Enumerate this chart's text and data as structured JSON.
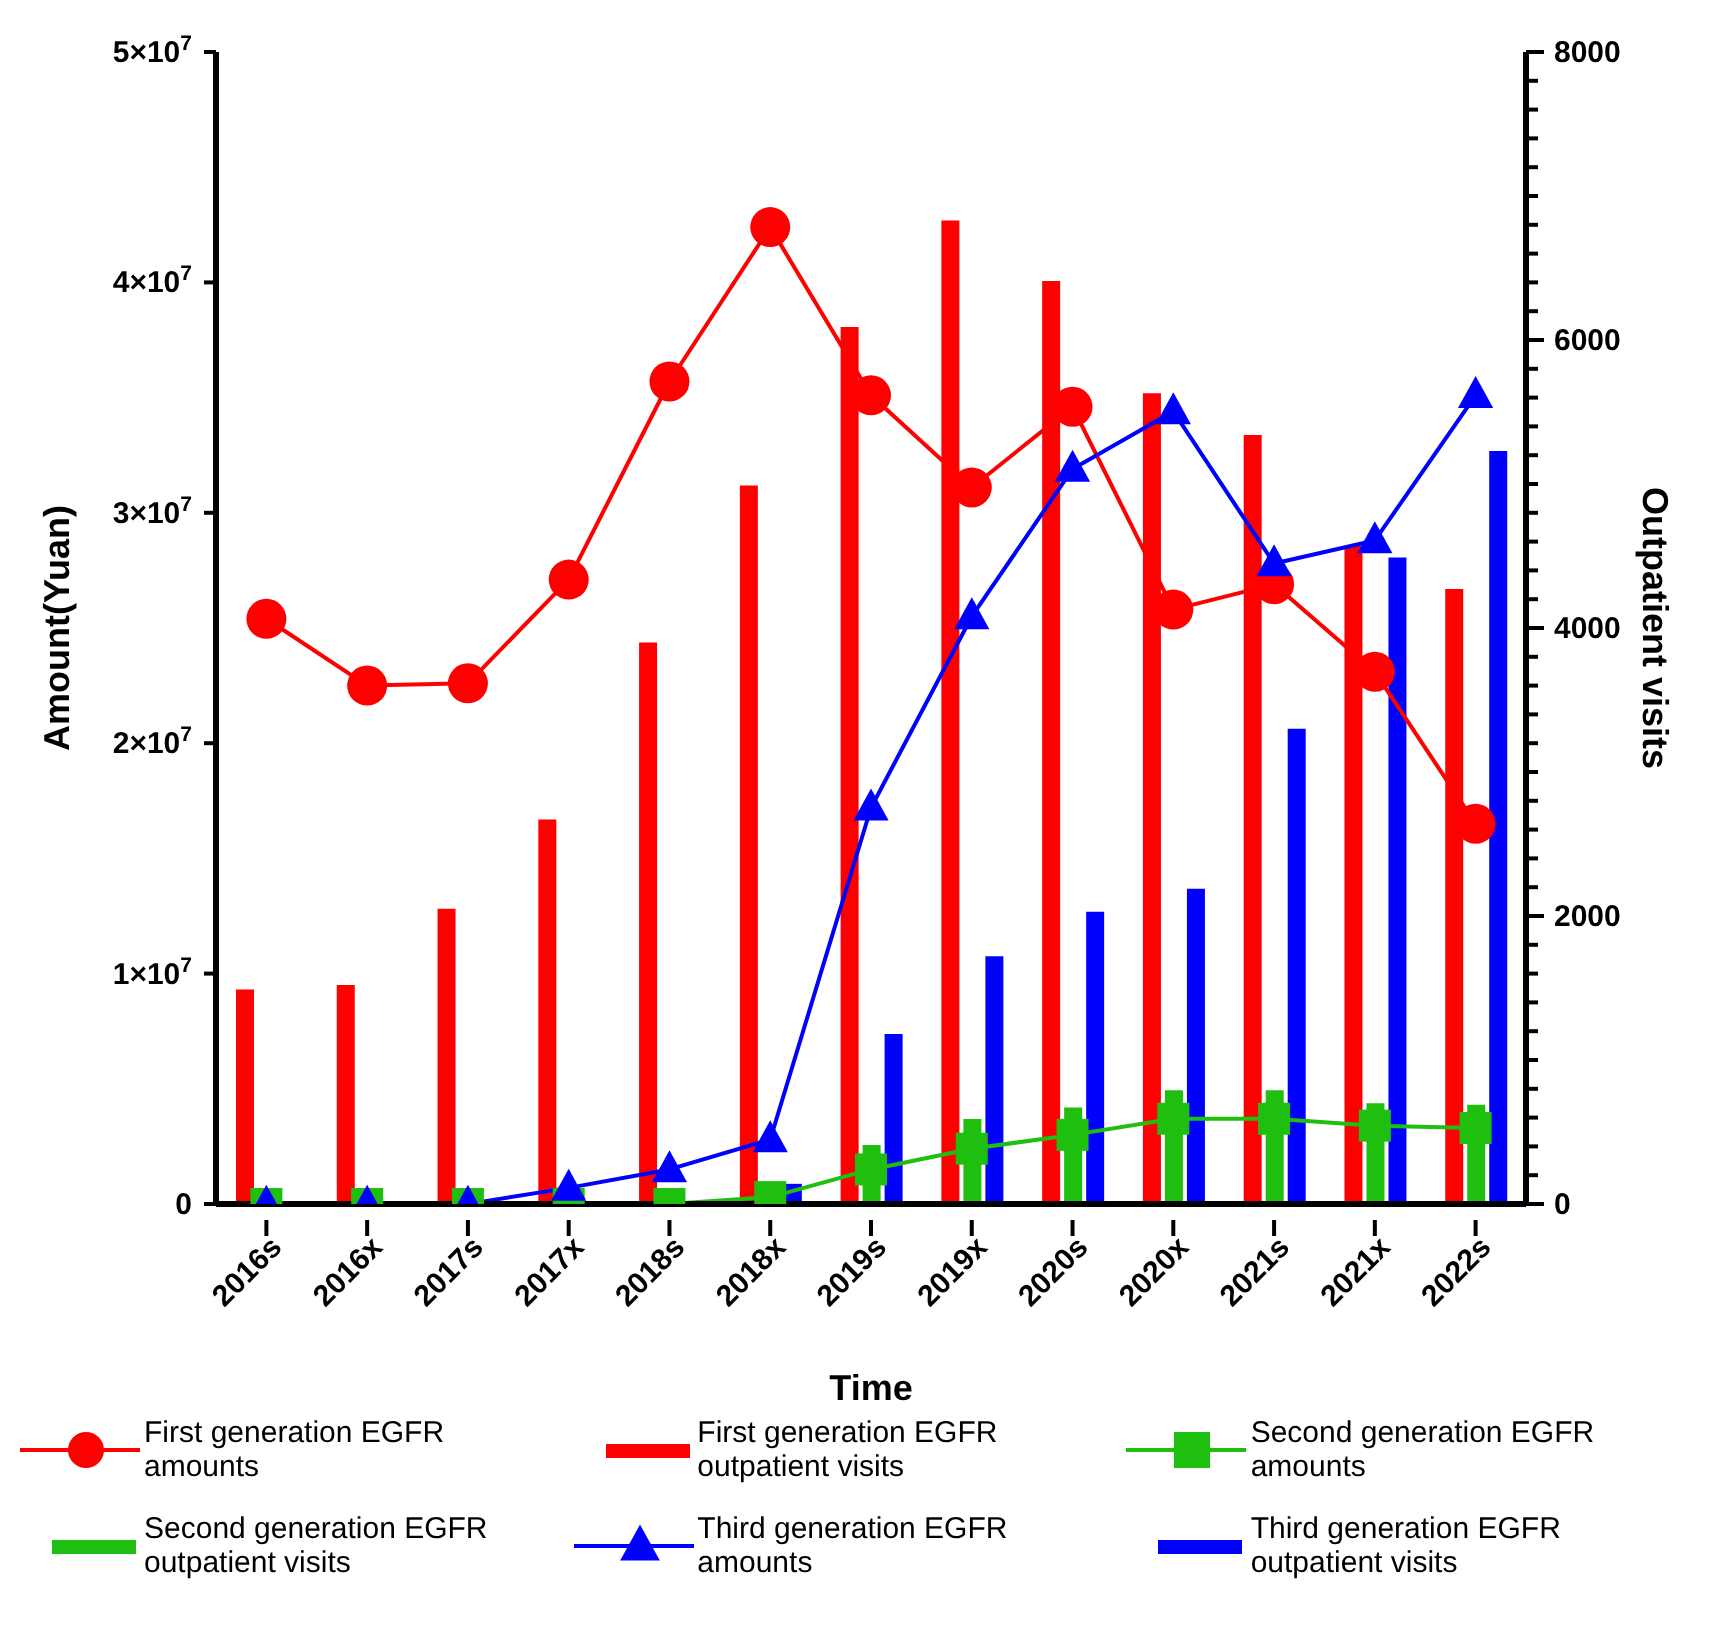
{
  "chart_data": {
    "type": "line",
    "xlabel": "Time",
    "ylabel": "Amount(Yuan)",
    "y2label": "Outpatient visits",
    "categories": [
      "2016s",
      "2016x",
      "2017s",
      "2017x",
      "2018s",
      "2018x",
      "2019s",
      "2019x",
      "2020s",
      "2020x",
      "2021s",
      "2021x",
      "2022s"
    ],
    "ylim": [
      0,
      50000000
    ],
    "yticks": [
      0,
      {
        "value": 10000000,
        "label": "1×10$^{7}$"
      },
      {
        "value": 20000000,
        "label": "2×10$^{7}$"
      },
      {
        "value": 30000000,
        "label": "3×10$^{7}$"
      },
      {
        "value": 40000000,
        "label": "4×10$^{7}$"
      },
      {
        "value": 50000000,
        "label": "5×10$^{7}$"
      }
    ],
    "y2lim": [
      0,
      8000
    ],
    "y2ticks": [
      0,
      {
        "value": 200,
        "label": null
      },
      {
        "value": 400,
        "label": null
      },
      {
        "value": 600,
        "label": null
      },
      {
        "value": 800,
        "label": null
      },
      {
        "value": 1000,
        "label": null
      },
      {
        "value": 1200,
        "label": null
      },
      {
        "value": 1400,
        "label": null
      },
      {
        "value": 1600,
        "label": null
      },
      {
        "value": 1800,
        "label": null
      },
      2000,
      {
        "value": 2200,
        "label": null
      },
      {
        "value": 2400,
        "label": null
      },
      {
        "value": 2600,
        "label": null
      },
      {
        "value": 2800,
        "label": null
      },
      {
        "value": 3000,
        "label": null
      },
      {
        "value": 3200,
        "label": null
      },
      {
        "value": 3400,
        "label": null
      },
      {
        "value": 3600,
        "label": null
      },
      {
        "value": 3800,
        "label": null
      },
      4000,
      {
        "value": 4200,
        "label": null
      },
      {
        "value": 4400,
        "label": null
      },
      {
        "value": 4600,
        "label": null
      },
      {
        "value": 4800,
        "label": null
      },
      {
        "value": 5000,
        "label": null
      },
      {
        "value": 5200,
        "label": null
      },
      {
        "value": 5400,
        "label": null
      },
      {
        "value": 5600,
        "label": null
      },
      {
        "value": 5800,
        "label": null
      },
      6000,
      {
        "value": 6200,
        "label": null
      },
      {
        "value": 6400,
        "label": null
      },
      {
        "value": 6600,
        "label": null
      },
      {
        "value": 6800,
        "label": null
      },
      {
        "value": 7000,
        "label": null
      },
      {
        "value": 7200,
        "label": null
      },
      {
        "value": 7400,
        "label": null
      },
      {
        "value": 7600,
        "label": null
      },
      {
        "value": 7800,
        "label": null
      },
      8000
    ],
    "grid": false,
    "legend": "bottom",
    "series": [
      {
        "name": "First generation EGFR amounts",
        "marker": "circle",
        "color": "#ff0000",
        "values": [
          25400000,
          22500000,
          22600000,
          27100000,
          35700000,
          42400000,
          35100000,
          31100000,
          34600000,
          25800000,
          26900000,
          23100000,
          16500000
        ]
      },
      {
        "name": "First generation EGFR outpatient visits",
        "type": "bar",
        "axis": "y2",
        "color": "#ff0000",
        "values": [
          1490,
          1520,
          2050,
          2670,
          3900,
          4990,
          6090,
          6830,
          6410,
          5630,
          5340,
          4570,
          4270
        ]
      },
      {
        "name": "Second generation EGFR amounts",
        "marker": "square",
        "color": "#1fbf0f",
        "values": [
          0,
          0,
          0,
          0,
          0,
          300000,
          1500000,
          2400000,
          3000000,
          3700000,
          3700000,
          3400000,
          3300000
        ]
      },
      {
        "name": "Second generation EGFR outpatient visits",
        "type": "bar",
        "axis": "y2",
        "color": "#1fbf0f",
        "values": [
          0,
          0,
          0,
          0,
          0,
          0,
          410,
          590,
          670,
          790,
          790,
          700,
          690
        ]
      },
      {
        "name": "Third generation EGFR amounts",
        "marker": "triangle",
        "color": "#0000ff",
        "values": [
          0,
          0,
          0,
          700000,
          1500000,
          2800000,
          17200000,
          25500000,
          31900000,
          34400000,
          27800000,
          28800000,
          35100000
        ]
      },
      {
        "name": "Third generation EGFR outpatient visits",
        "type": "bar",
        "axis": "y2",
        "color": "#0000ff",
        "values": [
          0,
          0,
          0,
          0,
          0,
          140,
          1180,
          1720,
          2030,
          2190,
          3300,
          4490,
          5230
        ]
      }
    ]
  }
}
